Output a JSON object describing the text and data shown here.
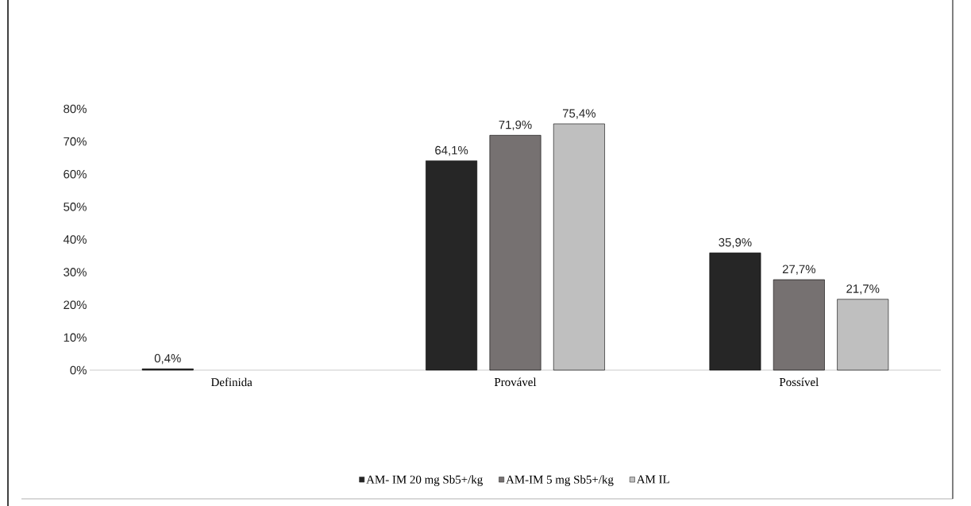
{
  "chart_data": {
    "type": "bar",
    "categories": [
      "Definida",
      "Provável",
      "Possível"
    ],
    "series": [
      {
        "name": "AM- IM 20 mg Sb5+/kg",
        "color": "#262626",
        "values": [
          0.4,
          64.1,
          35.9
        ],
        "value_labels": [
          "0,4%",
          "64,1%",
          "35,9%"
        ]
      },
      {
        "name": "AM-IM 5 mg Sb5+/kg",
        "color": "#767171",
        "values": [
          null,
          71.9,
          27.7
        ],
        "value_labels": [
          null,
          "71,9%",
          "27,7%"
        ]
      },
      {
        "name": "AM IL",
        "color": "#bfbfbf",
        "values": [
          null,
          75.4,
          21.7
        ],
        "value_labels": [
          null,
          "75,4%",
          "21,7%"
        ]
      }
    ],
    "ylim": [
      0,
      80
    ],
    "yticks": [
      {
        "value": 0,
        "label": "0%"
      },
      {
        "value": 10,
        "label": "10%"
      },
      {
        "value": 20,
        "label": "20%"
      },
      {
        "value": 30,
        "label": "30%"
      },
      {
        "value": 40,
        "label": "40%"
      },
      {
        "value": 50,
        "label": "50%"
      },
      {
        "value": 60,
        "label": "60%"
      },
      {
        "value": 70,
        "label": "70%"
      },
      {
        "value": 80,
        "label": "80%"
      }
    ],
    "legend": "bottom"
  }
}
